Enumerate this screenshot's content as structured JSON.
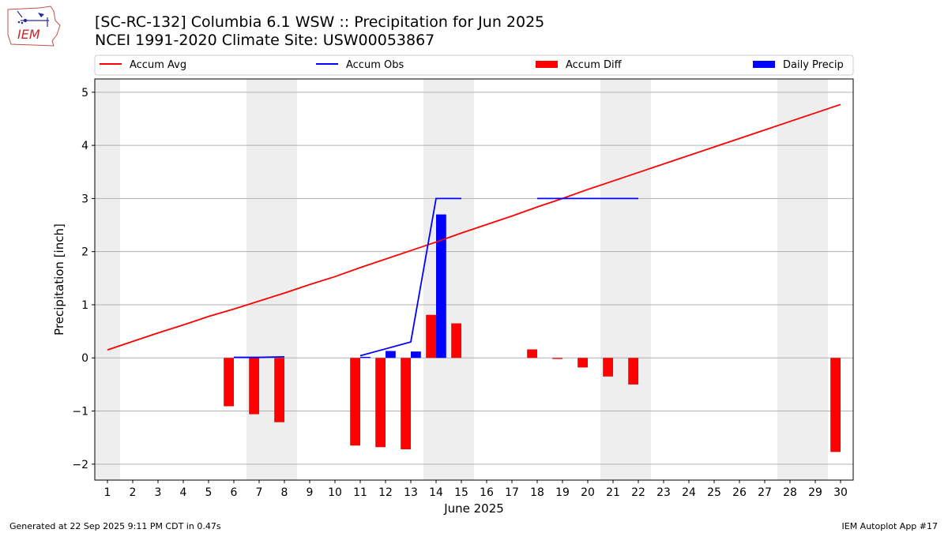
{
  "header": {
    "title_line1": "[SC-RC-132] Columbia 6.1 WSW :: Precipitation for Jun 2025",
    "title_line2": "NCEI 1991-2020 Climate Site: USW00053867"
  },
  "logo": {
    "text": "IEM",
    "icon": "iowa-state-outline-logo"
  },
  "footer": {
    "left": "Generated at 22 Sep 2025 9:11 PM CDT in 0.47s",
    "right": "IEM Autoplot App #17"
  },
  "colors": {
    "avg": "#ff0000",
    "obs": "#0000ff",
    "diff": "#ff0000",
    "daily": "#0000ff",
    "weekend": "#eeeeee",
    "grid": "#b0b0b0"
  },
  "chart_data": {
    "type": "bar",
    "xlabel": "June 2025",
    "ylabel": "Precipitation [inch]",
    "xlim": [
      0.5,
      30.5
    ],
    "ylim": [
      -2.3,
      5.25
    ],
    "yticks": [
      -2,
      -1,
      0,
      1,
      2,
      3,
      4,
      5
    ],
    "ytick_labels": [
      "−2",
      "−1",
      "0",
      "1",
      "2",
      "3",
      "4",
      "5"
    ],
    "xticks": [
      1,
      2,
      3,
      4,
      5,
      6,
      7,
      8,
      9,
      10,
      11,
      12,
      13,
      14,
      15,
      16,
      17,
      18,
      19,
      20,
      21,
      22,
      23,
      24,
      25,
      26,
      27,
      28,
      29,
      30
    ],
    "grid": "horizontal",
    "legend_position": "top",
    "weekend_days": [
      1,
      7,
      8,
      14,
      15,
      21,
      22,
      28,
      29
    ],
    "legend": [
      "Accum Avg",
      "Accum Obs",
      "Accum Diff",
      "Daily Precip"
    ],
    "series": [
      {
        "name": "Accum Avg",
        "kind": "line",
        "x": [
          1,
          2,
          3,
          4,
          5,
          6,
          7,
          8,
          9,
          10,
          11,
          12,
          13,
          14,
          15,
          16,
          17,
          18,
          19,
          20,
          21,
          22,
          23,
          24,
          25,
          26,
          27,
          28,
          29,
          30
        ],
        "values": [
          0.15,
          0.31,
          0.47,
          0.62,
          0.78,
          0.92,
          1.07,
          1.22,
          1.38,
          1.53,
          1.7,
          1.86,
          2.02,
          2.18,
          2.35,
          2.51,
          2.67,
          2.84,
          3.0,
          3.17,
          3.33,
          3.49,
          3.65,
          3.81,
          3.97,
          4.13,
          4.29,
          4.45,
          4.61,
          4.77
        ]
      },
      {
        "name": "Accum Obs",
        "kind": "line",
        "segments": [
          {
            "x": [
              6,
              7,
              8
            ],
            "values": [
              0.01,
              0.01,
              0.02
            ]
          },
          {
            "x": [
              11,
              12,
              13,
              14,
              15
            ],
            "values": [
              0.04,
              0.17,
              0.3,
              3.0,
              3.0
            ]
          },
          {
            "x": [
              18,
              19,
              20,
              21,
              22
            ],
            "values": [
              3.0,
              3.0,
              3.0,
              3.0,
              3.0
            ]
          }
        ]
      },
      {
        "name": "Accum Diff",
        "kind": "bar",
        "x": [
          6,
          7,
          8,
          11,
          12,
          13,
          14,
          15,
          18,
          19,
          20,
          21,
          22,
          30
        ],
        "values": [
          -0.91,
          -1.06,
          -1.21,
          -1.65,
          -1.68,
          -1.72,
          0.81,
          0.65,
          0.16,
          -0.02,
          -0.18,
          -0.35,
          -0.5,
          -1.77
        ]
      },
      {
        "name": "Daily Precip",
        "kind": "bar",
        "x": [
          11,
          12,
          13,
          14
        ],
        "values": [
          0.02,
          0.13,
          0.12,
          2.7
        ]
      }
    ]
  }
}
